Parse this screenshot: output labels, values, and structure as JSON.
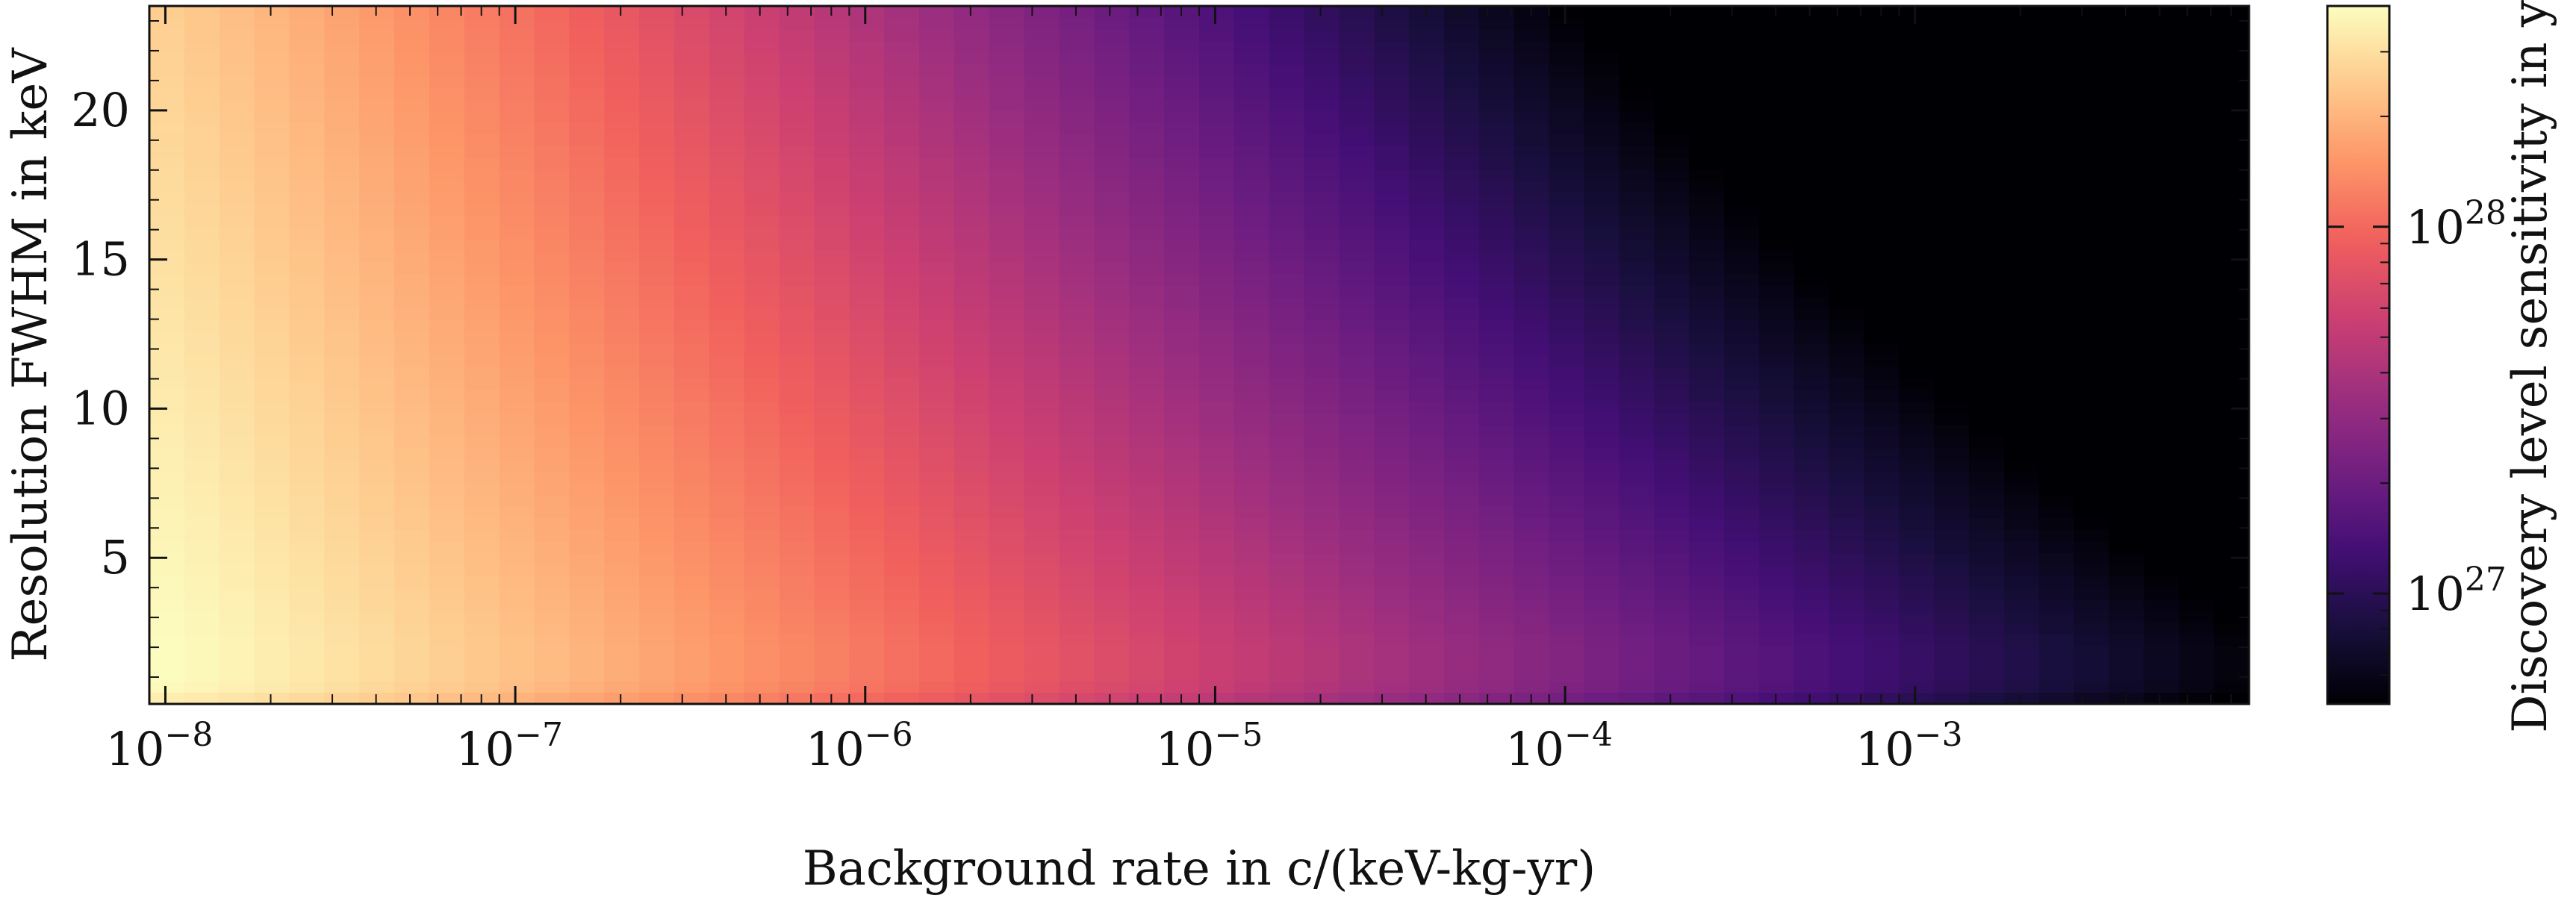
{
  "chart_data": {
    "type": "heatmap",
    "title": "",
    "xlabel": "Background rate in c/(keV-kg-yr)",
    "ylabel": "Resolution FWHM in keV",
    "colorbar_label": "Discovery level sensitivity in yr",
    "x_scale": "log",
    "y_scale": "linear",
    "xlim": [
      9e-09,
      0.009
    ],
    "ylim": [
      0.1,
      23.5
    ],
    "x_ticks": [
      {
        "value": 1e-08,
        "base": "10",
        "exp": "−8"
      },
      {
        "value": 1e-07,
        "base": "10",
        "exp": "−7"
      },
      {
        "value": 1e-06,
        "base": "10",
        "exp": "−6"
      },
      {
        "value": 1e-05,
        "base": "10",
        "exp": "−5"
      },
      {
        "value": 0.0001,
        "base": "10",
        "exp": "−4"
      },
      {
        "value": 0.001,
        "base": "10",
        "exp": "−3"
      }
    ],
    "y_ticks": [
      {
        "value": 5,
        "label": "5"
      },
      {
        "value": 10,
        "label": "10"
      },
      {
        "value": 15,
        "label": "15"
      },
      {
        "value": 20,
        "label": "20"
      }
    ],
    "colorbar_scale": "log",
    "colorbar_range": [
      5e+26,
      4e+28
    ],
    "colorbar_ticks": [
      {
        "value": 1e+27,
        "base": "10",
        "exp": "27"
      },
      {
        "value": 1e+28,
        "base": "10",
        "exp": "28"
      }
    ],
    "colormap": "magma",
    "colormap_stops": [
      "#000004",
      "#180f3d",
      "#440f76",
      "#721f81",
      "#9e2f7f",
      "#cd4071",
      "#f1605d",
      "#fd9668",
      "#feca8d",
      "#fcfdbf"
    ],
    "grid_size": [
      60,
      60
    ],
    "z_description": "Sensitivity is highest (≈4×10^28 yr) at low background and moderate resolution, decreasing to ≈5×10^26 yr at background ≈10^-2; at the very best resolution the sensitivity falls off toward lower values (pinkish/red band along the bottom)."
  }
}
